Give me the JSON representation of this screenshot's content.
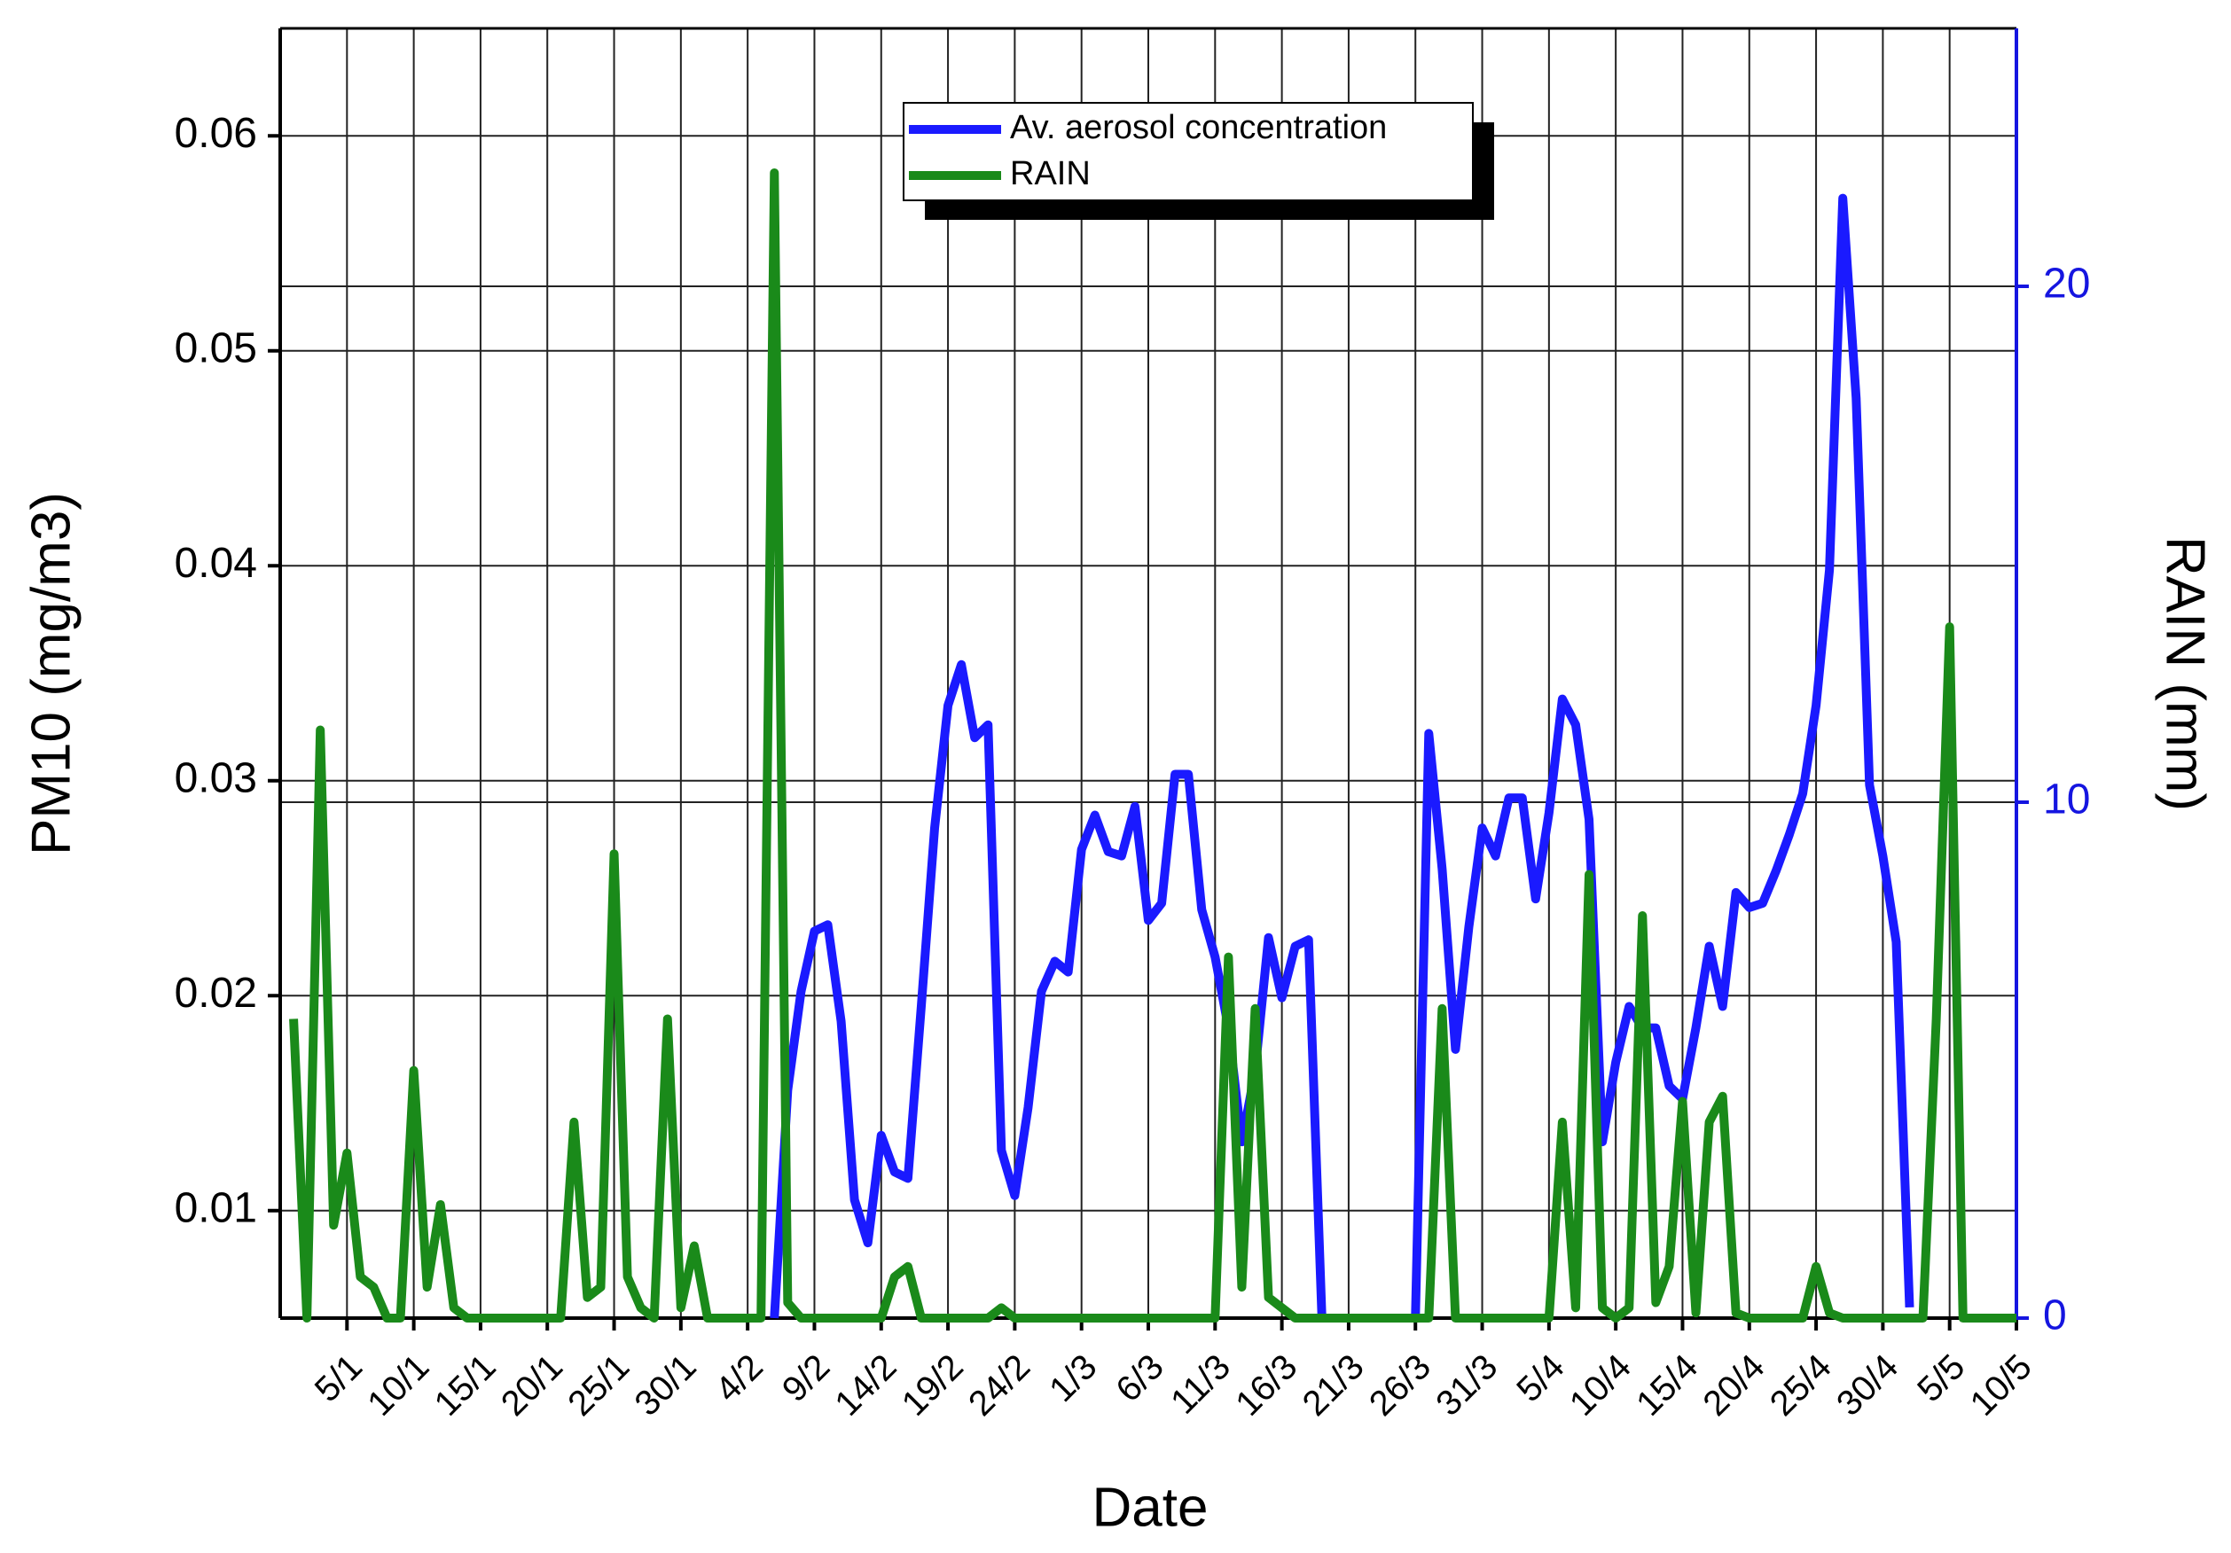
{
  "chart_data": {
    "type": "line",
    "xlabel": "Date",
    "ylabel": "PM10 (mg/m3)",
    "y2label": "RAIN (mm)",
    "x": [
      1,
      2,
      3,
      4,
      5,
      6,
      7,
      8,
      9,
      10,
      11,
      12,
      13,
      14,
      15,
      16,
      17,
      18,
      19,
      20,
      21,
      22,
      23,
      24,
      25,
      26,
      27,
      28,
      29,
      30,
      31,
      32,
      33,
      34,
      35,
      36,
      37,
      38,
      39,
      40,
      41,
      42,
      43,
      44,
      45,
      46,
      47,
      48,
      49,
      50,
      51,
      52,
      53,
      54,
      55,
      56,
      57,
      58,
      59,
      60,
      61,
      62,
      63,
      64,
      65,
      66,
      67,
      68,
      69,
      70,
      71,
      72,
      73,
      74,
      75,
      76,
      77,
      78,
      79,
      80,
      81,
      82,
      83,
      84,
      85,
      86,
      87,
      88,
      89,
      90,
      91,
      92,
      93,
      94,
      95,
      96,
      97,
      98,
      99,
      100,
      101,
      102,
      103,
      104,
      105,
      106,
      107,
      108,
      109,
      110,
      111,
      112,
      113,
      114,
      115,
      116,
      117,
      118,
      119,
      120,
      121,
      122,
      123,
      124,
      125,
      126,
      127,
      128,
      129,
      130
    ],
    "xlim": [
      0,
      130
    ],
    "xticks": [
      {
        "value": 5,
        "label": "5/1"
      },
      {
        "value": 10,
        "label": "10/1"
      },
      {
        "value": 15,
        "label": "15/1"
      },
      {
        "value": 20,
        "label": "20/1"
      },
      {
        "value": 25,
        "label": "25/1"
      },
      {
        "value": 30,
        "label": "30/1"
      },
      {
        "value": 35,
        "label": "4/2"
      },
      {
        "value": 40,
        "label": "9/2"
      },
      {
        "value": 45,
        "label": "14/2"
      },
      {
        "value": 50,
        "label": "19/2"
      },
      {
        "value": 55,
        "label": "24/2"
      },
      {
        "value": 60,
        "label": "1/3"
      },
      {
        "value": 65,
        "label": "6/3"
      },
      {
        "value": 70,
        "label": "11/3"
      },
      {
        "value": 75,
        "label": "16/3"
      },
      {
        "value": 80,
        "label": "21/3"
      },
      {
        "value": 85,
        "label": "26/3"
      },
      {
        "value": 90,
        "label": "31/3"
      },
      {
        "value": 95,
        "label": "5/4"
      },
      {
        "value": 100,
        "label": "10/4"
      },
      {
        "value": 105,
        "label": "15/4"
      },
      {
        "value": 110,
        "label": "20/4"
      },
      {
        "value": 115,
        "label": "25/4"
      },
      {
        "value": 120,
        "label": "30/4"
      },
      {
        "value": 125,
        "label": "5/5"
      },
      {
        "value": 130,
        "label": "10/5"
      }
    ],
    "ylim": [
      0.005,
      0.065
    ],
    "yticks": [
      0.01,
      0.02,
      0.03,
      0.04,
      0.05,
      0.06
    ],
    "y2lim": [
      0,
      25
    ],
    "y2ticks": [
      0,
      10,
      20
    ],
    "y2color": "#1515e0",
    "grid": true,
    "series": [
      {
        "name": "Av. aerosol concentration",
        "color": "#1a1aff",
        "values": [
          null,
          null,
          null,
          null,
          null,
          null,
          null,
          null,
          null,
          null,
          null,
          null,
          null,
          null,
          null,
          null,
          null,
          null,
          null,
          null,
          null,
          null,
          null,
          null,
          null,
          null,
          null,
          null,
          null,
          null,
          null,
          null,
          null,
          null,
          null,
          null,
          0.005,
          0.0156,
          0.0202,
          0.023,
          0.0233,
          0.0188,
          0.0105,
          0.0085,
          0.0135,
          0.0118,
          0.0115,
          0.0195,
          0.0278,
          0.0335,
          0.0354,
          0.032,
          0.0326,
          0.0128,
          0.0107,
          0.0148,
          0.0202,
          0.0216,
          0.0211,
          0.0268,
          0.0284,
          0.0267,
          0.0265,
          0.0288,
          0.0235,
          0.0243,
          0.0303,
          0.0303,
          0.024,
          0.0218,
          0.0185,
          0.0132,
          0.0165,
          0.0227,
          0.0199,
          0.0223,
          0.0226,
          0.005,
          null,
          null,
          null,
          null,
          null,
          null,
          0.005,
          0.0322,
          0.0259,
          0.0175,
          0.0232,
          0.0278,
          0.0265,
          0.0292,
          0.0292,
          0.0245,
          0.0285,
          0.0338,
          0.0326,
          0.0282,
          0.0132,
          0.0169,
          0.0195,
          0.0185,
          0.0185,
          0.0158,
          0.0152,
          0.0185,
          0.0223,
          0.0195,
          0.0248,
          0.0241,
          0.0243,
          0.0258,
          0.0275,
          0.0294,
          0.0335,
          0.0398,
          0.0571,
          0.0478,
          0.0298,
          0.0265,
          0.0225,
          0.0055,
          null,
          null,
          null,
          null,
          null,
          null,
          null,
          null
        ]
      },
      {
        "name": "RAIN",
        "color": "#1a8a1a",
        "axis": "y2",
        "values": [
          5.8,
          0,
          11.4,
          1.8,
          3.2,
          0.8,
          0.6,
          0,
          0,
          4.8,
          0.6,
          2.2,
          0.2,
          0,
          0,
          0,
          0,
          0,
          0,
          0,
          0,
          3.8,
          0.4,
          0.6,
          9.0,
          0.8,
          0.2,
          0,
          5.8,
          0.2,
          1.4,
          0,
          0,
          0,
          0,
          0,
          22.2,
          0.3,
          0,
          0,
          0,
          0,
          0,
          0,
          0,
          0.8,
          1.0,
          0,
          0,
          0,
          0,
          0,
          0,
          0.2,
          0,
          0,
          0,
          0,
          0,
          0,
          0,
          0,
          0,
          0,
          0,
          0,
          0,
          0,
          0,
          0,
          7.0,
          0.6,
          6.0,
          0.4,
          0.2,
          0,
          0,
          0,
          0,
          0,
          0,
          0,
          0,
          0,
          0,
          0,
          6.0,
          0,
          0,
          0,
          0,
          0,
          0,
          0,
          0,
          3.8,
          0.2,
          8.6,
          0.2,
          0,
          0.2,
          7.8,
          0.3,
          1.0,
          4.2,
          0.1,
          3.8,
          4.3,
          0.1,
          0,
          0,
          0,
          0,
          0,
          1.0,
          0.1,
          0,
          0,
          0,
          0,
          0,
          0,
          0,
          5.8,
          13.4,
          0,
          0,
          0,
          0,
          0
        ]
      }
    ]
  }
}
